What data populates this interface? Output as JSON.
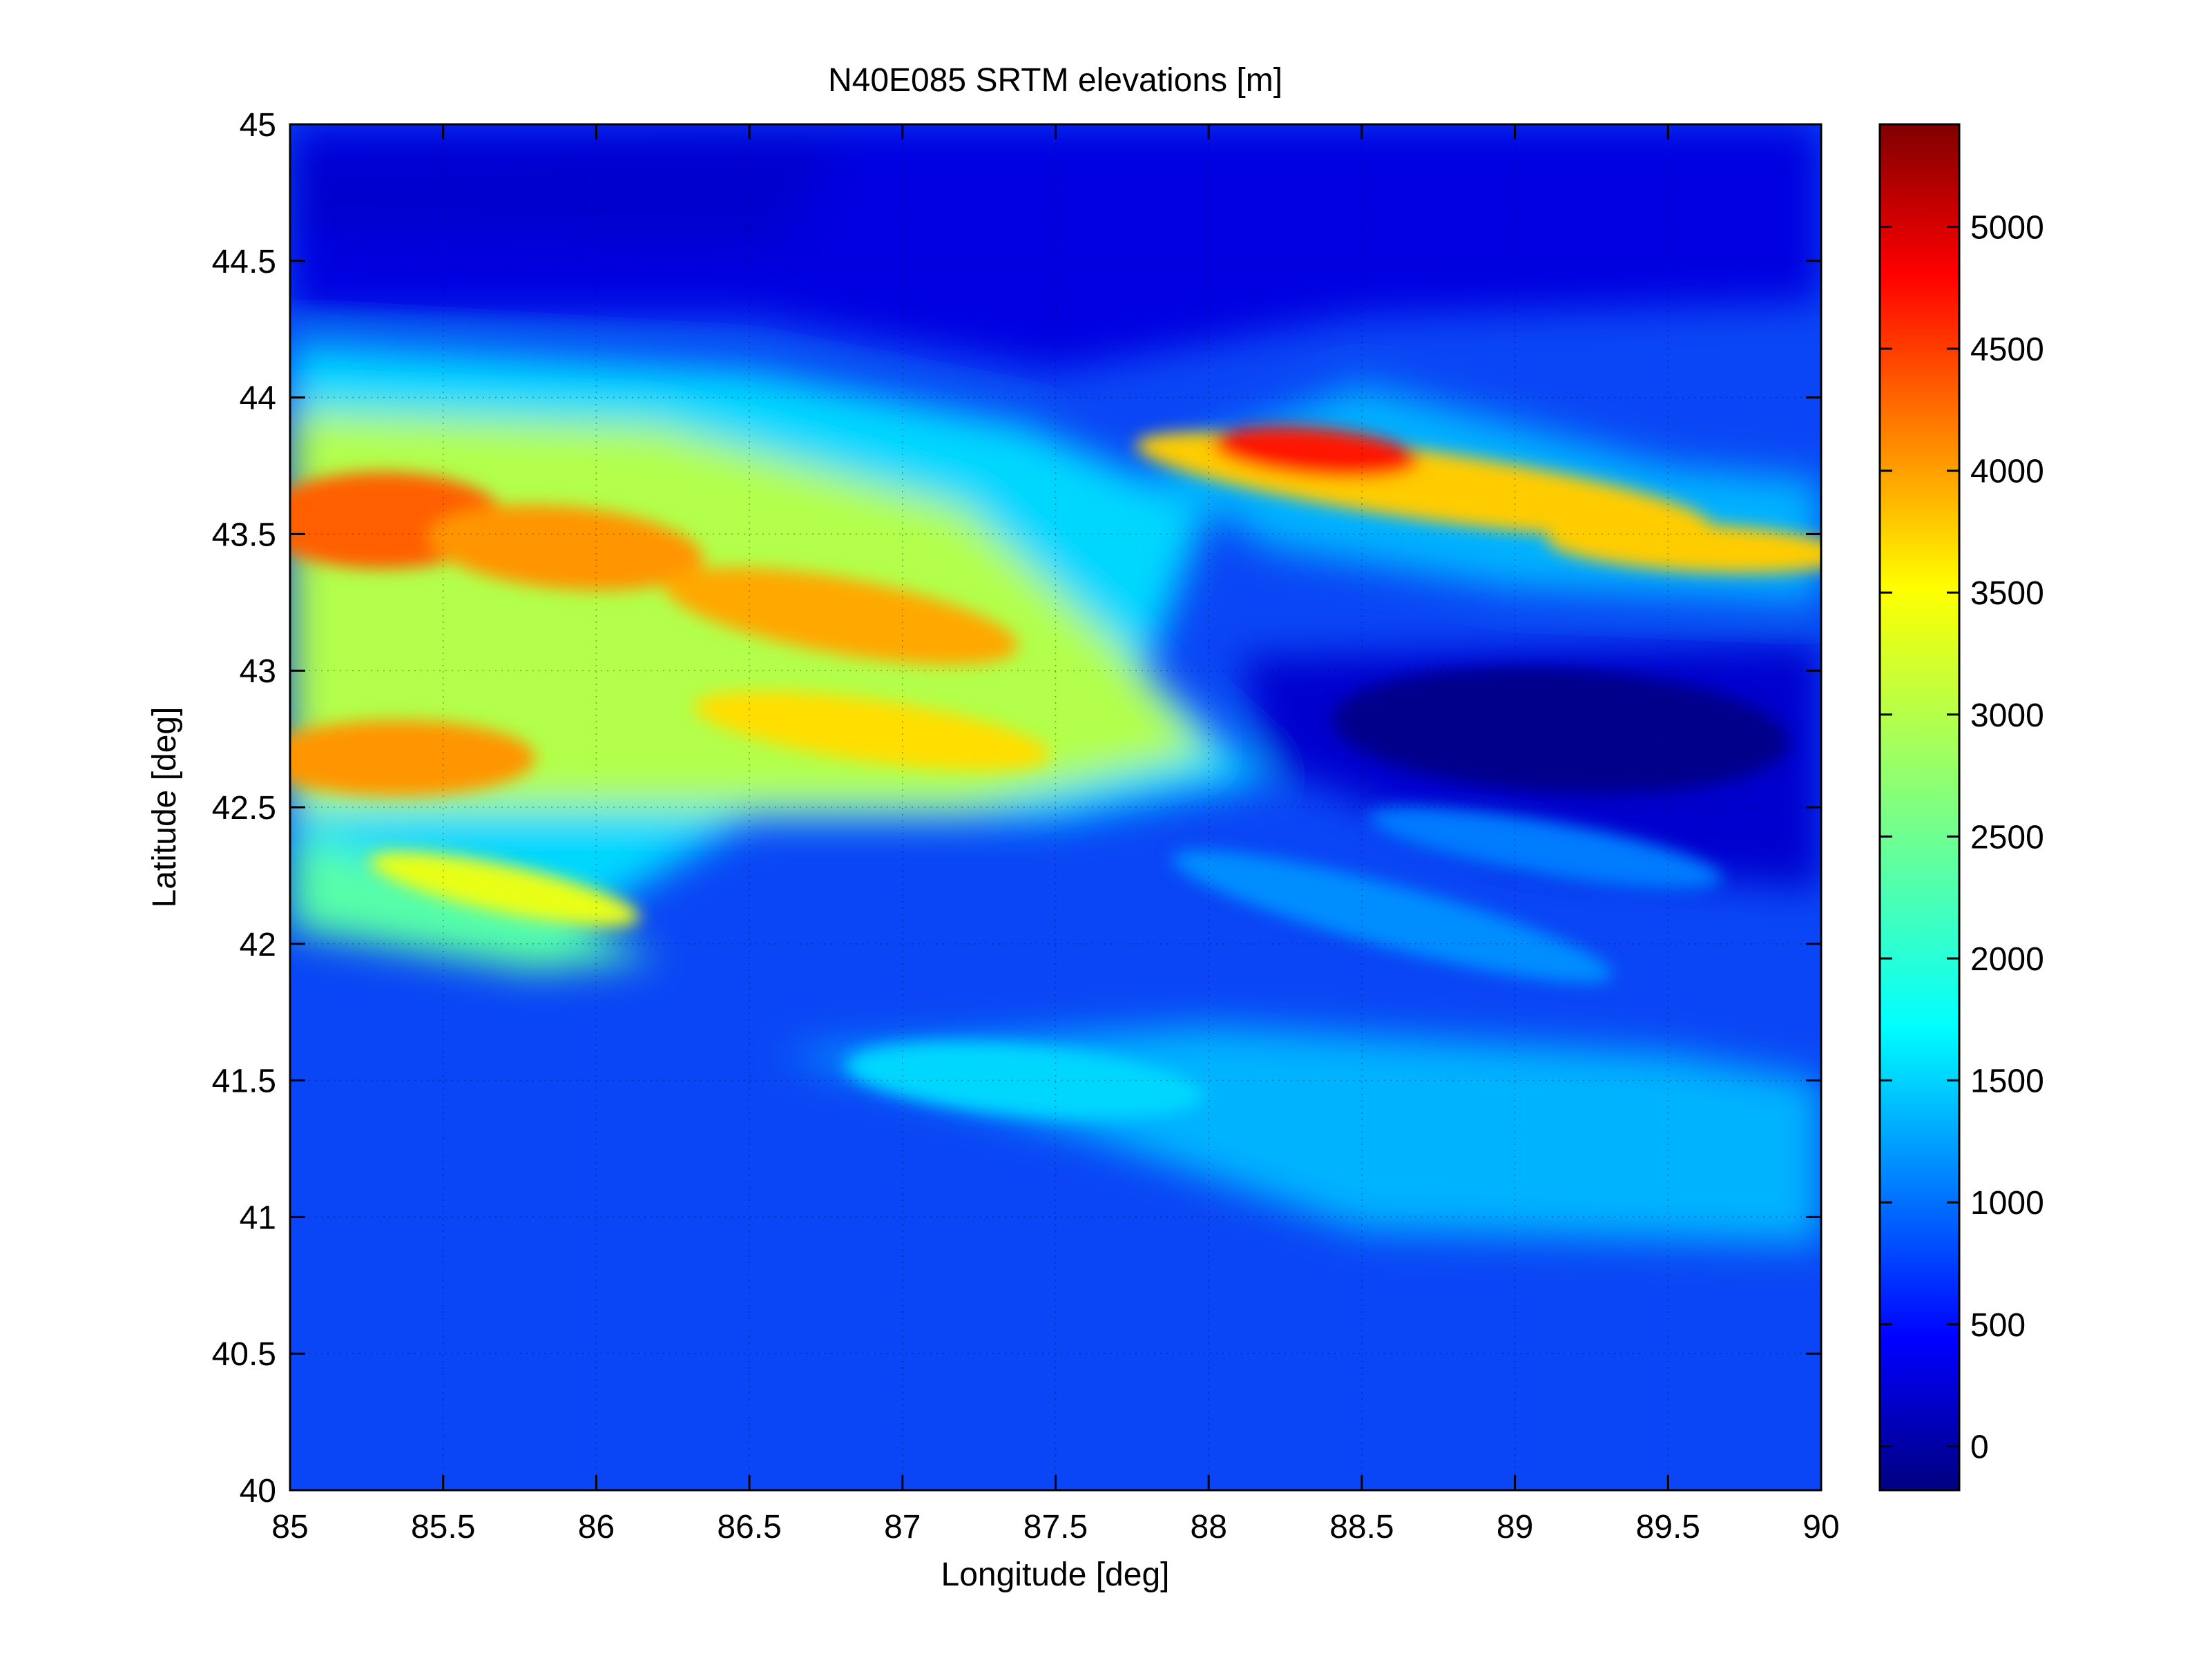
{
  "chart_data": {
    "type": "heatmap",
    "title": "N40E085 SRTM elevations [m]",
    "xlabel": "Longitude [deg]",
    "ylabel": "Latitude [deg]",
    "xlim": [
      85,
      90
    ],
    "ylim": [
      40,
      45
    ],
    "xticks": [
      85,
      85.5,
      86,
      86.5,
      87,
      87.5,
      88,
      88.5,
      89,
      89.5,
      90
    ],
    "xtick_labels": [
      "85",
      "85.5",
      "86",
      "86.5",
      "87",
      "87.5",
      "88",
      "88.5",
      "89",
      "89.5",
      "90"
    ],
    "yticks": [
      40,
      40.5,
      41,
      41.5,
      42,
      42.5,
      43,
      43.5,
      44,
      44.5,
      45
    ],
    "ytick_labels": [
      "40",
      "40.5",
      "41",
      "41.5",
      "42",
      "42.5",
      "43",
      "43.5",
      "44",
      "44.5",
      "45"
    ],
    "grid": true,
    "colormap": "jet",
    "colorbar": {
      "position": "right",
      "range": [
        -180,
        5420
      ],
      "ticks": [
        0,
        500,
        1000,
        1500,
        2000,
        2500,
        3000,
        3500,
        4000,
        4500,
        5000
      ],
      "tick_labels": [
        "0",
        "500",
        "1000",
        "1500",
        "2000",
        "2500",
        "3000",
        "3500",
        "4000",
        "4500",
        "5000"
      ]
    },
    "features": [
      {
        "lon": 86.2,
        "lat": 44.5,
        "elevation": 350
      },
      {
        "lon": 85.3,
        "lat": 43.55,
        "elevation": 4400
      },
      {
        "lon": 86.0,
        "lat": 43.45,
        "elevation": 4200
      },
      {
        "lon": 86.8,
        "lat": 43.15,
        "elevation": 3900
      },
      {
        "lon": 85.3,
        "lat": 42.65,
        "elevation": 4100
      },
      {
        "lon": 86.8,
        "lat": 42.75,
        "elevation": 3700
      },
      {
        "lon": 85.6,
        "lat": 42.15,
        "elevation": 3000
      },
      {
        "lon": 88.35,
        "lat": 43.8,
        "elevation": 5300
      },
      {
        "lon": 89.5,
        "lat": 43.45,
        "elevation": 3900
      },
      {
        "lon": 89.2,
        "lat": 42.7,
        "elevation": -150
      },
      {
        "lon": 87.6,
        "lat": 41.5,
        "elevation": 1700
      },
      {
        "lon": 87.0,
        "lat": 40.5,
        "elevation": 800
      }
    ]
  }
}
